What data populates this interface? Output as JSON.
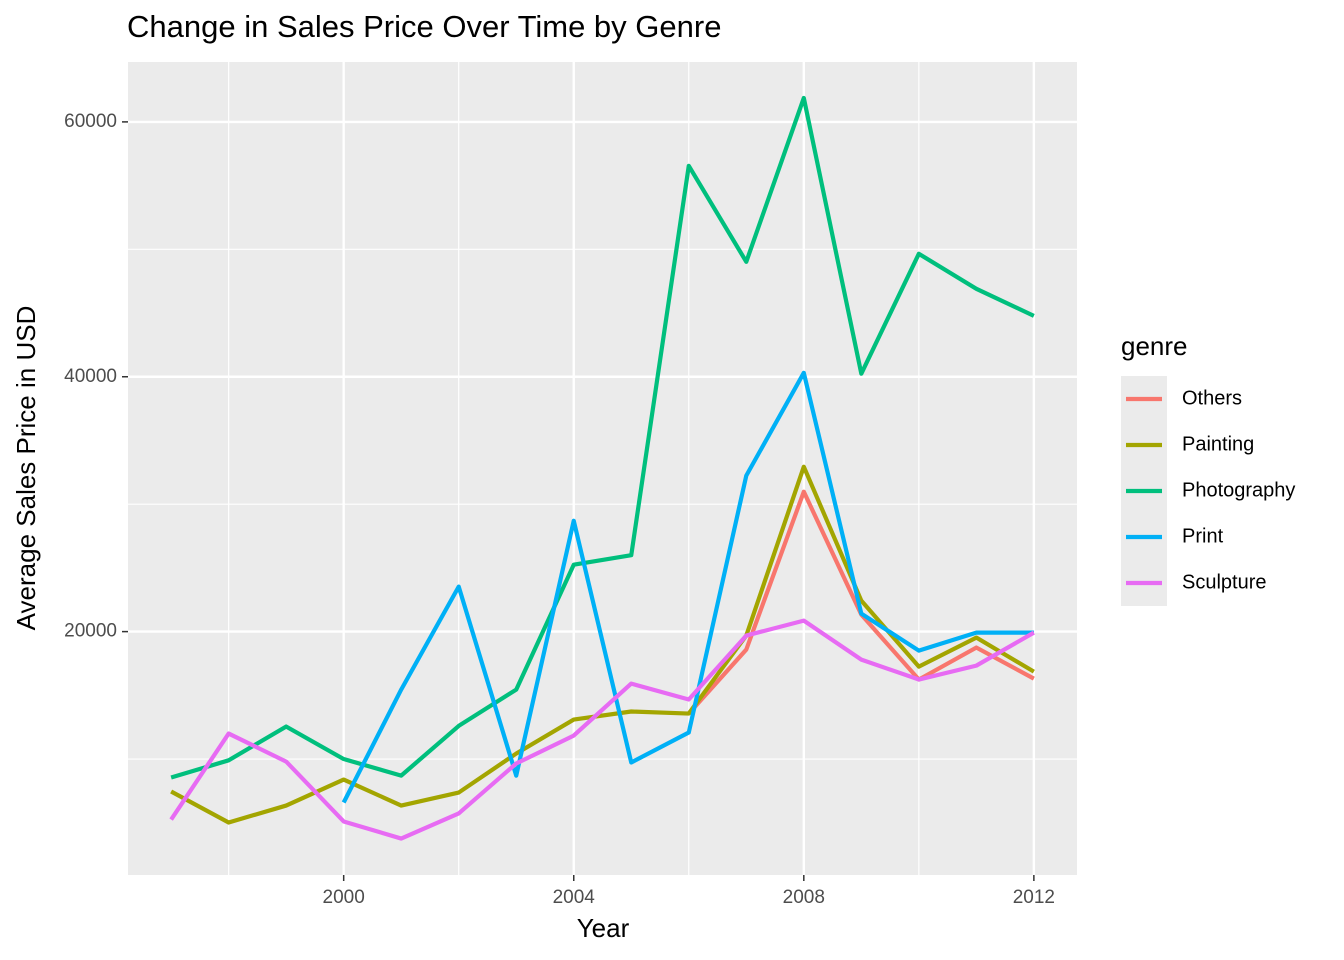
{
  "chart_data": {
    "type": "line",
    "title": "Change in Sales Price Over Time by Genre",
    "x_label": "Year",
    "y_label": "Average Sales Price in USD",
    "legend_title": "genre",
    "legend_position": "right",
    "x": [
      1997,
      1998,
      1999,
      2000,
      2001,
      2002,
      2003,
      2004,
      2005,
      2006,
      2007,
      2008,
      2009,
      2010,
      2011,
      2012
    ],
    "series": [
      {
        "name": "Others",
        "color": "#F8766D",
        "values": [
          null,
          null,
          null,
          null,
          null,
          null,
          null,
          null,
          null,
          13570,
          18590,
          30980,
          21330,
          16240,
          18750,
          16310
        ]
      },
      {
        "name": "Painting",
        "color": "#A3A500",
        "values": [
          7450,
          5020,
          6350,
          8390,
          6350,
          7370,
          10430,
          13100,
          13730,
          13570,
          19690,
          32940,
          22430,
          17250,
          19530,
          16860
        ]
      },
      {
        "name": "Photography",
        "color": "#00BF7D",
        "values": [
          8550,
          9900,
          12550,
          10000,
          8700,
          12600,
          15450,
          25250,
          26000,
          56550,
          49020,
          61880,
          40240,
          49650,
          46900,
          44780
        ]
      },
      {
        "name": "Print",
        "color": "#00B0F6",
        "values": [
          null,
          null,
          null,
          6590,
          15450,
          23530,
          8700,
          28700,
          9730,
          12080,
          32240,
          40310,
          21410,
          18510,
          19920,
          19920
        ]
      },
      {
        "name": "Sculpture",
        "color": "#E76BF3",
        "values": [
          5250,
          12000,
          9800,
          5100,
          3760,
          5730,
          9650,
          11840,
          15920,
          14670,
          19690,
          20860,
          17800,
          16240,
          17330,
          19920
        ]
      }
    ],
    "xlim": [
      1996.25,
      2012.75
    ],
    "xticks": [
      2000,
      2004,
      2008,
      2012
    ],
    "x_minor_ticks": [
      1998,
      2002,
      2006,
      2010
    ],
    "ylim": [
      900,
      64700
    ],
    "yticks": [
      20000,
      40000,
      60000
    ],
    "y_minor_ticks": [
      10000,
      30000,
      50000
    ],
    "grid": true
  }
}
